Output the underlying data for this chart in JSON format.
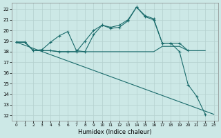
{
  "background_color": "#cce8e6",
  "grid_color": "#b4d0ce",
  "line_color": "#1a6b6b",
  "xlabel": "Humidex (Indice chaleur)",
  "xlim": [
    -0.5,
    23.5
  ],
  "ylim": [
    11.5,
    22.6
  ],
  "yticks": [
    12,
    13,
    14,
    15,
    16,
    17,
    18,
    19,
    20,
    21,
    22
  ],
  "xticks": [
    0,
    1,
    2,
    3,
    4,
    5,
    6,
    7,
    8,
    9,
    10,
    11,
    12,
    13,
    14,
    15,
    16,
    17,
    18,
    19,
    20,
    21,
    22,
    23
  ],
  "lines": [
    {
      "x": [
        0,
        1,
        2,
        3,
        4,
        5,
        6,
        7,
        8,
        9,
        10,
        11,
        12,
        13,
        14,
        15,
        16,
        17,
        18,
        19,
        20
      ],
      "y": [
        18.9,
        18.9,
        18.1,
        18.2,
        18.9,
        19.5,
        19.9,
        18.1,
        18.0,
        19.6,
        20.5,
        20.2,
        20.3,
        20.9,
        22.2,
        21.3,
        21.0,
        18.8,
        18.8,
        18.8,
        18.1
      ],
      "marker": true
    },
    {
      "x": [
        0,
        23
      ],
      "y": [
        18.9,
        12.1
      ],
      "marker": false
    },
    {
      "x": [
        0,
        1,
        2,
        3,
        4,
        5,
        6,
        7,
        8,
        9,
        10,
        11,
        12,
        13,
        14,
        15,
        16,
        17,
        18,
        19,
        20,
        21,
        22
      ],
      "y": [
        18.9,
        18.9,
        18.1,
        18.1,
        18.1,
        18.0,
        18.0,
        18.0,
        18.0,
        18.0,
        18.0,
        18.0,
        18.0,
        18.0,
        18.0,
        18.0,
        18.0,
        18.5,
        18.5,
        18.5,
        18.1,
        18.1,
        18.1
      ],
      "marker": false
    },
    {
      "x": [
        0,
        1,
        2,
        3,
        4,
        5,
        6,
        7,
        8,
        9,
        10,
        11,
        12,
        13,
        14,
        15,
        16,
        17,
        18,
        19,
        20,
        21,
        22
      ],
      "y": [
        18.9,
        18.9,
        18.1,
        18.1,
        18.1,
        18.0,
        18.0,
        18.0,
        19.0,
        20.0,
        20.5,
        20.3,
        20.5,
        21.0,
        22.2,
        21.4,
        21.1,
        18.8,
        18.8,
        18.0,
        14.9,
        13.8,
        12.1
      ],
      "marker": true
    }
  ]
}
